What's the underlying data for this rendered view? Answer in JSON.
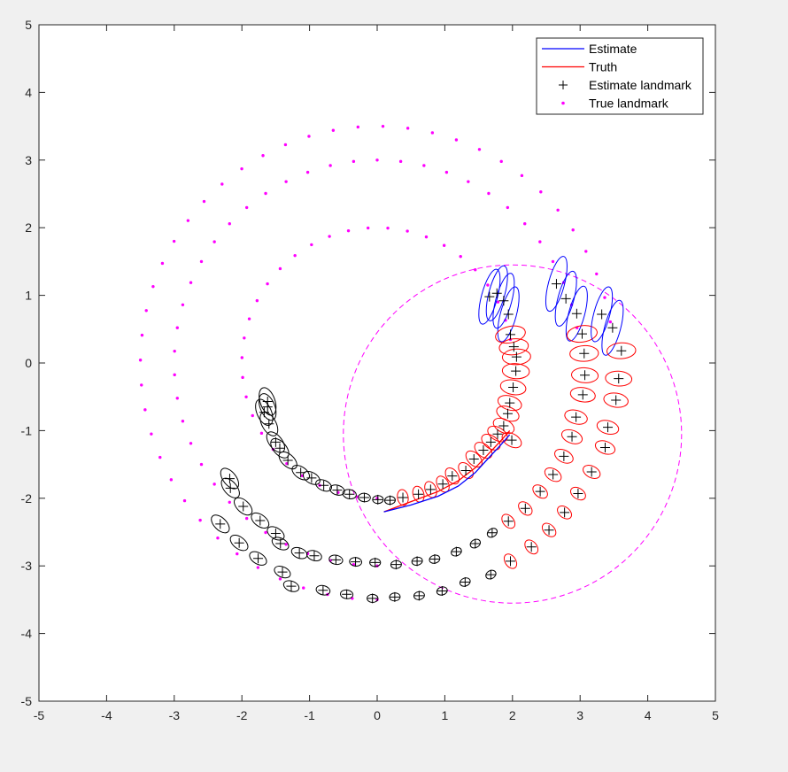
{
  "chart_data": {
    "type": "scatter",
    "title": "",
    "xlabel": "",
    "ylabel": "",
    "xlim": [
      -5,
      5
    ],
    "ylim": [
      -5,
      5
    ],
    "xticks": [
      "-5",
      "-4",
      "-3",
      "-2",
      "-1",
      "0",
      "1",
      "2",
      "3",
      "4",
      "5"
    ],
    "yticks": [
      "5",
      "4",
      "3",
      "2",
      "1",
      "0",
      "-1",
      "-2",
      "-3",
      "-4",
      "-5"
    ],
    "grid": false,
    "legend_position": "top-right",
    "legend": [
      {
        "label": "Estimate",
        "color": "#0000ff",
        "marker": "line"
      },
      {
        "label": "Truth",
        "color": "#ff0000",
        "marker": "line"
      },
      {
        "label": "Estimate landmark",
        "color": "#000000",
        "marker": "plus"
      },
      {
        "label": "True landmark",
        "color": "#ff00ff",
        "marker": "dot"
      }
    ],
    "true_landmark_rings": [
      {
        "center": [
          0,
          0
        ],
        "radius": 2.0,
        "start_deg": 10,
        "end_deg": 270,
        "count": 32
      },
      {
        "center": [
          0,
          0
        ],
        "radius": 3.0,
        "start_deg": 10,
        "end_deg": 270,
        "count": 40
      },
      {
        "center": [
          0,
          0
        ],
        "radius": 3.5,
        "start_deg": 10,
        "end_deg": 270,
        "count": 44
      }
    ],
    "estimate_landmarks": [
      [
        1.66,
        0.98
      ],
      [
        1.77,
        1.03
      ],
      [
        1.87,
        0.92
      ],
      [
        1.94,
        0.72
      ],
      [
        1.97,
        0.42
      ],
      [
        2.02,
        0.24
      ],
      [
        2.06,
        0.09
      ],
      [
        2.05,
        -0.12
      ],
      [
        2.01,
        -0.36
      ],
      [
        1.96,
        -0.59
      ],
      [
        1.93,
        -0.75
      ],
      [
        1.87,
        -0.93
      ],
      [
        1.99,
        -1.14
      ],
      [
        1.78,
        -1.05
      ],
      [
        1.68,
        -1.17
      ],
      [
        1.57,
        -1.29
      ],
      [
        1.43,
        -1.42
      ],
      [
        1.31,
        -1.59
      ],
      [
        1.11,
        -1.67
      ],
      [
        0.97,
        -1.79
      ],
      [
        0.79,
        -1.87
      ],
      [
        0.61,
        -1.94
      ],
      [
        0.38,
        -1.99
      ],
      [
        0.19,
        -2.03
      ],
      [
        0.01,
        -2.02
      ],
      [
        -0.19,
        -1.99
      ],
      [
        -0.41,
        -1.94
      ],
      [
        -0.59,
        -1.88
      ],
      [
        -0.79,
        -1.81
      ],
      [
        -0.97,
        -1.7
      ],
      [
        -1.13,
        -1.62
      ],
      [
        -1.32,
        -1.44
      ],
      [
        -1.44,
        -1.26
      ],
      [
        -1.5,
        -1.17
      ],
      [
        -1.6,
        -0.9
      ],
      [
        -1.67,
        -0.73
      ],
      [
        -1.62,
        -0.65
      ],
      [
        -1.62,
        -0.57
      ],
      [
        2.79,
        0.95
      ],
      [
        2.95,
        0.73
      ],
      [
        3.03,
        0.43
      ],
      [
        3.06,
        0.14
      ],
      [
        3.07,
        -0.18
      ],
      [
        3.04,
        -0.47
      ],
      [
        2.94,
        -0.8
      ],
      [
        2.88,
        -1.09
      ],
      [
        2.76,
        -1.38
      ],
      [
        2.6,
        -1.65
      ],
      [
        2.41,
        -1.9
      ],
      [
        2.19,
        -2.15
      ],
      [
        1.94,
        -2.34
      ],
      [
        1.7,
        -2.51
      ],
      [
        1.45,
        -2.67
      ],
      [
        1.17,
        -2.79
      ],
      [
        0.85,
        -2.9
      ],
      [
        0.59,
        -2.93
      ],
      [
        0.28,
        -2.98
      ],
      [
        -0.03,
        -2.95
      ],
      [
        -0.32,
        -2.94
      ],
      [
        -0.61,
        -2.91
      ],
      [
        -0.93,
        -2.85
      ],
      [
        -1.15,
        -2.81
      ],
      [
        -1.43,
        -2.67
      ],
      [
        -1.5,
        -2.52
      ],
      [
        -1.73,
        -2.33
      ],
      [
        -1.98,
        -2.12
      ],
      [
        -2.17,
        -1.85
      ],
      [
        -2.18,
        -1.71
      ],
      [
        2.65,
        1.17
      ],
      [
        3.32,
        0.72
      ],
      [
        3.48,
        0.52
      ],
      [
        3.61,
        0.18
      ],
      [
        3.57,
        -0.23
      ],
      [
        3.53,
        -0.55
      ],
      [
        3.41,
        -0.95
      ],
      [
        3.37,
        -1.25
      ],
      [
        3.17,
        -1.61
      ],
      [
        2.97,
        -1.93
      ],
      [
        2.77,
        -2.21
      ],
      [
        2.54,
        -2.47
      ],
      [
        2.28,
        -2.72
      ],
      [
        1.97,
        -2.93
      ],
      [
        1.68,
        -3.13
      ],
      [
        1.3,
        -3.24
      ],
      [
        0.96,
        -3.37
      ],
      [
        0.62,
        -3.44
      ],
      [
        0.26,
        -3.46
      ],
      [
        -0.07,
        -3.48
      ],
      [
        -0.45,
        -3.42
      ],
      [
        -0.8,
        -3.36
      ],
      [
        -1.27,
        -3.3
      ],
      [
        -1.4,
        -3.09
      ],
      [
        -1.76,
        -2.89
      ],
      [
        -2.04,
        -2.66
      ],
      [
        -2.32,
        -2.38
      ]
    ],
    "estimate_landmark_sample_count": 2,
    "estimate_path": [
      [
        0.1,
        -2.2
      ],
      [
        0.5,
        -2.1
      ],
      [
        0.9,
        -1.97
      ],
      [
        1.2,
        -1.82
      ],
      [
        1.45,
        -1.62
      ],
      [
        1.65,
        -1.4
      ],
      [
        1.82,
        -1.22
      ],
      [
        1.96,
        -1.06
      ]
    ],
    "truth_path": [
      [
        0.1,
        -2.2
      ],
      [
        0.5,
        -2.05
      ],
      [
        0.9,
        -1.9
      ],
      [
        1.2,
        -1.74
      ],
      [
        1.45,
        -1.55
      ],
      [
        1.66,
        -1.33
      ],
      [
        1.82,
        -1.16
      ],
      [
        1.96,
        -1.0
      ]
    ],
    "sensor_range": {
      "center": [
        2.0,
        -1.05
      ],
      "radius": 2.5,
      "color": "#ff00ff",
      "style": "dashed"
    },
    "colors": {
      "estimate": "#0000ff",
      "truth": "#ff0000",
      "landmark_estimate": "#000000",
      "landmark_true": "#ff00ff",
      "ellipse_old": "#000000",
      "ellipse_current": "#ff0000",
      "ellipse_new": "#0000ff",
      "axes_bg": "#ffffff",
      "figure_bg": "#f0f0f0"
    }
  }
}
